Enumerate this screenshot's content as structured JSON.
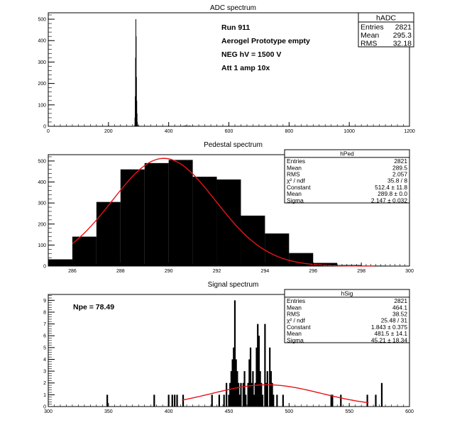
{
  "chart_data": [
    {
      "id": "adc",
      "type": "bar",
      "title": "ADC spectrum",
      "xlim": [
        0,
        1200
      ],
      "ylim": [
        0,
        530
      ],
      "xticks": [
        0,
        200,
        400,
        600,
        800,
        1000,
        1200
      ],
      "yticks": [
        0,
        100,
        200,
        300,
        400,
        500
      ],
      "bins": [
        {
          "x": 287,
          "y": 5
        },
        {
          "x": 288,
          "y": 40
        },
        {
          "x": 289,
          "y": 140
        },
        {
          "x": 290,
          "y": 320
        },
        {
          "x": 291,
          "y": 500
        },
        {
          "x": 292,
          "y": 420
        },
        {
          "x": 293,
          "y": 230
        },
        {
          "x": 294,
          "y": 120
        },
        {
          "x": 295,
          "y": 60
        },
        {
          "x": 296,
          "y": 20
        },
        {
          "x": 297,
          "y": 6
        },
        {
          "x": 300,
          "y": 3
        },
        {
          "x": 310,
          "y": 2
        },
        {
          "x": 330,
          "y": 2
        },
        {
          "x": 360,
          "y": 1
        },
        {
          "x": 380,
          "y": 2
        },
        {
          "x": 405,
          "y": 1
        },
        {
          "x": 420,
          "y": 1
        },
        {
          "x": 440,
          "y": 2
        },
        {
          "x": 450,
          "y": 3
        },
        {
          "x": 455,
          "y": 5
        },
        {
          "x": 460,
          "y": 4
        },
        {
          "x": 465,
          "y": 3
        },
        {
          "x": 470,
          "y": 4
        },
        {
          "x": 475,
          "y": 2
        },
        {
          "x": 480,
          "y": 3
        },
        {
          "x": 500,
          "y": 1
        },
        {
          "x": 540,
          "y": 1
        }
      ],
      "stats": {
        "title": "hADC",
        "rows": [
          {
            "label": "Entries",
            "value": "2821"
          },
          {
            "label": "Mean",
            "value": "295.3"
          },
          {
            "label": "RMS",
            "value": "32.18"
          }
        ]
      },
      "annotations": [
        "Run  911",
        "Aerogel Prototype empty",
        "NEG hV = 1500 V",
        "Att 1 amp 10x"
      ]
    },
    {
      "id": "ped",
      "type": "bar",
      "title": "Pedestal spectrum",
      "xlim": [
        285,
        300
      ],
      "ylim": [
        0,
        530
      ],
      "xticks": [
        286,
        288,
        290,
        292,
        294,
        296,
        298,
        300
      ],
      "yticks": [
        0,
        100,
        200,
        300,
        400,
        500
      ],
      "bin_edges": [
        285,
        286,
        287,
        288,
        289,
        290,
        291,
        292,
        293,
        294,
        295,
        296,
        297,
        298,
        299,
        300
      ],
      "values": [
        32,
        140,
        305,
        460,
        490,
        505,
        425,
        412,
        240,
        155,
        62,
        15,
        5,
        2,
        0
      ],
      "fit": {
        "function": "gaus",
        "constant": 512.4,
        "mean": 289.8,
        "sigma": 2.147,
        "range": [
          286,
          298.5
        ]
      },
      "stats": {
        "title": "hPed",
        "rows": [
          {
            "label": "Entries",
            "value": "2821"
          },
          {
            "label": "Mean",
            "value": "289.5"
          },
          {
            "label": "RMS",
            "value": "2.057"
          },
          {
            "label": "χ² / ndf",
            "value": "35.8 / 8"
          },
          {
            "label": "Constant",
            "value": "512.4 ± 11.8"
          },
          {
            "label": "Mean",
            "value": "289.8 ± 0.0"
          },
          {
            "label": "Sigma",
            "value": "2.147 ± 0.032"
          }
        ]
      }
    },
    {
      "id": "sig",
      "type": "bar",
      "title": "Signal spectrum",
      "xlim": [
        300,
        600
      ],
      "ylim": [
        0,
        9.5
      ],
      "xticks": [
        300,
        350,
        400,
        450,
        500,
        550,
        600
      ],
      "yticks": [
        0,
        1,
        2,
        3,
        4,
        5,
        6,
        7,
        8,
        9
      ],
      "bins": [
        {
          "x": 349,
          "y": 1
        },
        {
          "x": 388,
          "y": 1
        },
        {
          "x": 400,
          "y": 1
        },
        {
          "x": 403,
          "y": 1
        },
        {
          "x": 405,
          "y": 1
        },
        {
          "x": 407,
          "y": 1
        },
        {
          "x": 412,
          "y": 1
        },
        {
          "x": 436,
          "y": 1
        },
        {
          "x": 442,
          "y": 1
        },
        {
          "x": 446,
          "y": 1
        },
        {
          "x": 448,
          "y": 2
        },
        {
          "x": 450,
          "y": 1
        },
        {
          "x": 451,
          "y": 2
        },
        {
          "x": 452,
          "y": 3
        },
        {
          "x": 453,
          "y": 4
        },
        {
          "x": 454,
          "y": 5
        },
        {
          "x": 455,
          "y": 9
        },
        {
          "x": 456,
          "y": 4
        },
        {
          "x": 457,
          "y": 3
        },
        {
          "x": 458,
          "y": 2
        },
        {
          "x": 459,
          "y": 1
        },
        {
          "x": 460,
          "y": 2
        },
        {
          "x": 462,
          "y": 2
        },
        {
          "x": 463,
          "y": 3
        },
        {
          "x": 464,
          "y": 1
        },
        {
          "x": 466,
          "y": 2
        },
        {
          "x": 467,
          "y": 4
        },
        {
          "x": 468,
          "y": 5
        },
        {
          "x": 469,
          "y": 2
        },
        {
          "x": 470,
          "y": 3
        },
        {
          "x": 471,
          "y": 1
        },
        {
          "x": 472,
          "y": 2
        },
        {
          "x": 473,
          "y": 5
        },
        {
          "x": 474,
          "y": 7
        },
        {
          "x": 475,
          "y": 6
        },
        {
          "x": 476,
          "y": 3
        },
        {
          "x": 477,
          "y": 2
        },
        {
          "x": 478,
          "y": 1
        },
        {
          "x": 480,
          "y": 7
        },
        {
          "x": 481,
          "y": 2
        },
        {
          "x": 482,
          "y": 3
        },
        {
          "x": 484,
          "y": 5
        },
        {
          "x": 485,
          "y": 3
        },
        {
          "x": 486,
          "y": 2
        },
        {
          "x": 487,
          "y": 1
        },
        {
          "x": 490,
          "y": 1
        },
        {
          "x": 495,
          "y": 1
        },
        {
          "x": 535,
          "y": 1
        },
        {
          "x": 536,
          "y": 1
        },
        {
          "x": 543,
          "y": 1
        },
        {
          "x": 565,
          "y": 1
        },
        {
          "x": 572,
          "y": 1
        },
        {
          "x": 577,
          "y": 2
        }
      ],
      "fit": {
        "function": "gaus",
        "constant": 1.843,
        "mean": 481.5,
        "sigma": 45.21,
        "range": [
          411,
          566
        ]
      },
      "stats": {
        "title": "hSig",
        "rows": [
          {
            "label": "Entries",
            "value": "2821"
          },
          {
            "label": "Mean",
            "value": "464.1"
          },
          {
            "label": "RMS",
            "value": "38.52"
          },
          {
            "label": "χ² / ndf",
            "value": "25.48 / 31"
          },
          {
            "label": "Constant",
            "value": "1.843 ± 0.375"
          },
          {
            "label": "Mean",
            "value": "481.5 ± 14.1"
          },
          {
            "label": "Sigma",
            "value": "45.21 ± 18.34"
          }
        ]
      },
      "annotations": [
        "Npe = 78.49"
      ]
    }
  ]
}
